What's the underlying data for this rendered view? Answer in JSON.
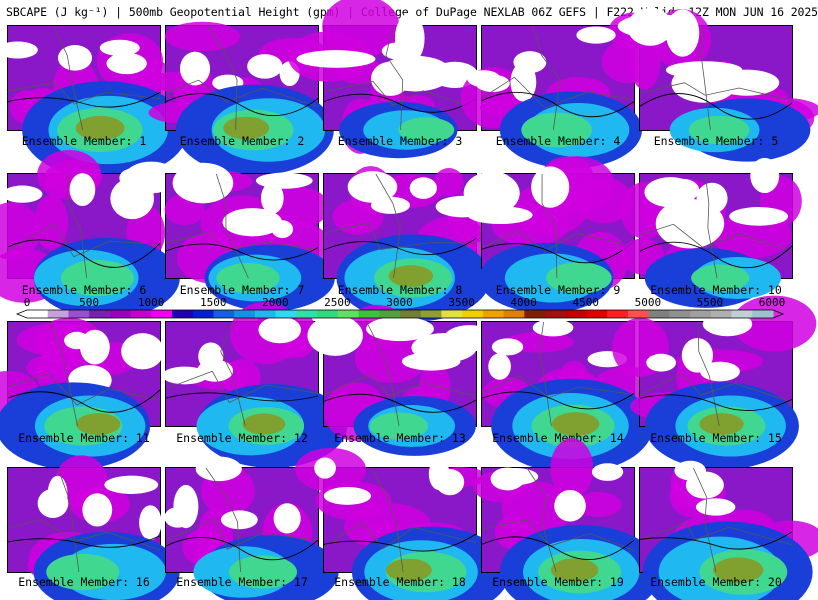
{
  "header": {
    "title": "SBCAPE (J kg⁻¹) | 500mb Geopotential Height (gpm) | College of DuPage NEXLAB 06Z GEFS | F222 Valid: 12Z MON JUN 16 2025"
  },
  "colorbar": {
    "ticks": [
      "0",
      "500",
      "1000",
      "1500",
      "2000",
      "2500",
      "3000",
      "3500",
      "4000",
      "4500",
      "5000",
      "5500",
      "6000"
    ],
    "colors": [
      "#ffffff",
      "#c8a0e0",
      "#9a4fd0",
      "#7a1fb0",
      "#9a00c0",
      "#c400d0",
      "#ee00ee",
      "#2000b0",
      "#0020d0",
      "#1460e0",
      "#1890e8",
      "#20b8f0",
      "#30d8f0",
      "#30e0a8",
      "#30d880",
      "#60e060",
      "#40c040",
      "#50a040",
      "#708030",
      "#90a030",
      "#e0e040",
      "#f0d000",
      "#f0a000",
      "#e08000",
      "#802000",
      "#a01010",
      "#c00000",
      "#e00000",
      "#ff2020",
      "#ff5050",
      "#808080",
      "#909090",
      "#a0a0a0",
      "#b0b0b0",
      "#c0d0d8",
      "#a0c0d0"
    ]
  },
  "panels": [
    {
      "label": "Ensemble Member: 1",
      "level": 0.85
    },
    {
      "label": "Ensemble Member: 2",
      "level": 0.75
    },
    {
      "label": "Ensemble Member: 3",
      "level": 0.25
    },
    {
      "label": "Ensemble Member: 4",
      "level": 0.55
    },
    {
      "label": "Ensemble Member: 5",
      "level": 0.35
    },
    {
      "label": "Ensemble Member: 6",
      "level": 0.6
    },
    {
      "label": "Ensemble Member: 7",
      "level": 0.4
    },
    {
      "label": "Ensemble Member: 8",
      "level": 0.7
    },
    {
      "label": "Ensemble Member: 9",
      "level": 0.45
    },
    {
      "label": "Ensemble Member: 10",
      "level": 0.3
    },
    {
      "label": "Ensemble Member: 11",
      "level": 0.7
    },
    {
      "label": "Ensemble Member: 12",
      "level": 0.65
    },
    {
      "label": "Ensemble Member: 13",
      "level": 0.3
    },
    {
      "label": "Ensemble Member: 14",
      "level": 0.8
    },
    {
      "label": "Ensemble Member: 15",
      "level": 0.7
    },
    {
      "label": "Ensemble Member: 16",
      "level": 0.6
    },
    {
      "label": "Ensemble Member: 17",
      "level": 0.5
    },
    {
      "label": "Ensemble Member: 18",
      "level": 0.75
    },
    {
      "label": "Ensemble Member: 19",
      "level": 0.8
    },
    {
      "label": "Ensemble Member: 20",
      "level": 0.9
    }
  ]
}
